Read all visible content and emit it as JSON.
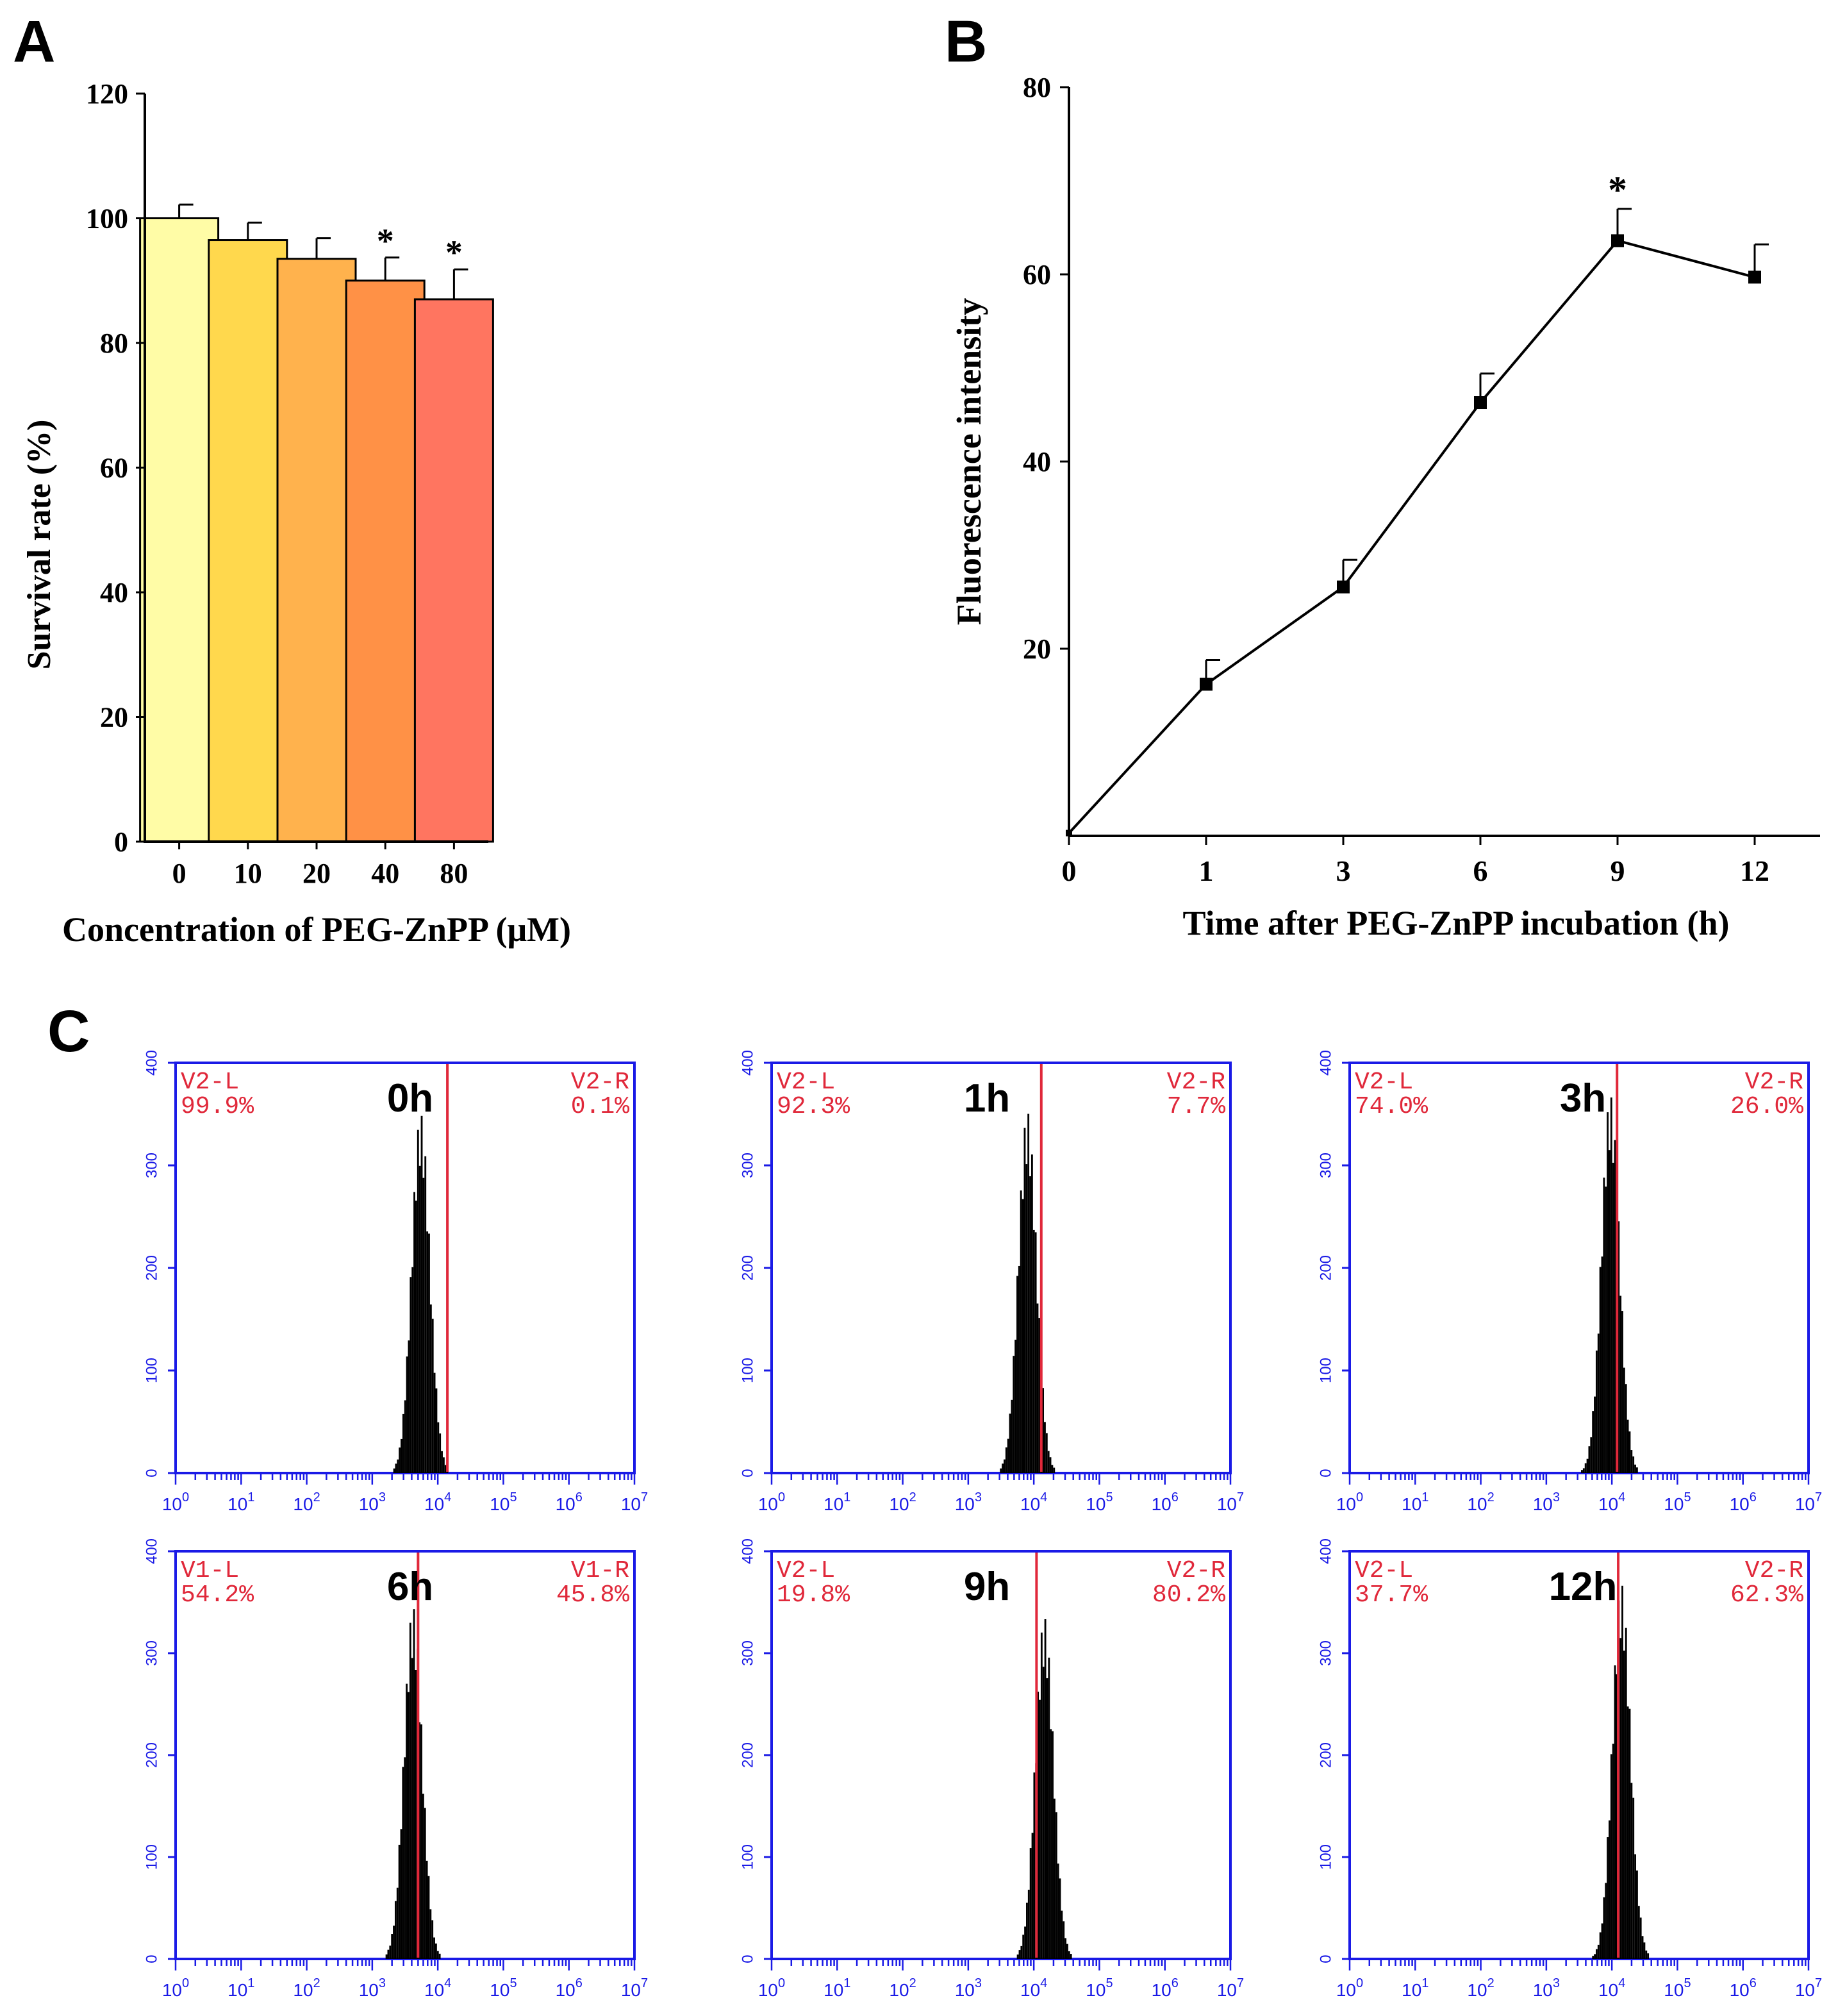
{
  "panels": {
    "a": "A",
    "b": "B",
    "c": "C"
  },
  "colors": {
    "flow_frame": "#1a1ae6",
    "gate_text": "#e0283a",
    "gate_line": "#e0283a",
    "hist_fill": "#000000"
  },
  "chart_data": [
    {
      "type": "bar",
      "panel": "A",
      "categories": [
        "0",
        "10",
        "20",
        "40",
        "80"
      ],
      "values": [
        100,
        96.5,
        93.5,
        90,
        87
      ],
      "errors": [
        2.2,
        2.8,
        3.3,
        3.7,
        4.8
      ],
      "significance": [
        "",
        "",
        "",
        "*",
        "*"
      ],
      "bar_colors": [
        "#fffca6",
        "#ffd84d",
        "#ffb24d",
        "#ff9146",
        "#ff7560"
      ],
      "xlabel": "Concentration of PEG-ZnPP (μM)",
      "ylabel": "Survival rate (%)",
      "ylim": [
        0,
        120
      ],
      "yticks": [
        "0",
        "20",
        "40",
        "60",
        "80",
        "100",
        "120"
      ]
    },
    {
      "type": "line",
      "panel": "B",
      "x": [
        0,
        1,
        3,
        6,
        9,
        12
      ],
      "x_tick_labels": [
        "0",
        "1",
        "3",
        "6",
        "9",
        "12"
      ],
      "y": [
        0.3,
        16.2,
        26.6,
        46.3,
        63.6,
        59.7
      ],
      "errors": [
        0,
        2.6,
        2.9,
        3.1,
        3.4,
        3.5
      ],
      "significance": [
        "",
        "",
        "",
        "",
        "*",
        ""
      ],
      "xlabel": "Time after PEG-ZnPP incubation (h)",
      "ylabel": "Fluorescence  intensity",
      "ylim": [
        0,
        80
      ],
      "yticks": [
        "20",
        "40",
        "60",
        "80"
      ],
      "x0_label": "0"
    },
    {
      "type": "histogram",
      "panel": "C",
      "x_scale": "log",
      "xlim": [
        1,
        10000000
      ],
      "x_tick_labels": [
        [
          "10",
          "0"
        ],
        [
          "10",
          "1"
        ],
        [
          "10",
          "2"
        ],
        [
          "10",
          "3"
        ],
        [
          "10",
          "4"
        ],
        [
          "10",
          "5"
        ],
        [
          "10",
          "6"
        ],
        [
          "10",
          "7"
        ]
      ],
      "ylim": [
        0,
        400
      ],
      "y_tick_labels": [
        "0",
        "100",
        "200",
        "300",
        "400"
      ],
      "plots": [
        {
          "time": "0h",
          "left_gate": "V2-L",
          "left_pct": "99.9%",
          "right_gate": "V2-R",
          "right_pct": "0.1%",
          "gate_x": 14000,
          "peak_x": 5500,
          "peak_count": 350
        },
        {
          "time": "1h",
          "left_gate": "V2-L",
          "left_pct": "92.3%",
          "right_gate": "V2-R",
          "right_pct": "7.7%",
          "gate_x": 13000,
          "peak_x": 8000,
          "peak_count": 352
        },
        {
          "time": "3h",
          "left_gate": "V2-L",
          "left_pct": "74.0%",
          "right_gate": "V2-R",
          "right_pct": "26.0%",
          "gate_x": 12000,
          "peak_x": 9500,
          "peak_count": 368
        },
        {
          "time": "6h",
          "left_gate": "V1-L",
          "left_pct": "54.2%",
          "right_gate": "V1-R",
          "right_pct": "45.8%",
          "gate_x": 5000,
          "peak_x": 4200,
          "peak_count": 345
        },
        {
          "time": "9h",
          "left_gate": "V2-L",
          "left_pct": "19.8%",
          "right_gate": "V2-R",
          "right_pct": "80.2%",
          "gate_x": 11000,
          "peak_x": 14500,
          "peak_count": 335
        },
        {
          "time": "12h",
          "left_gate": "V2-L",
          "left_pct": "37.7%",
          "right_gate": "V2-R",
          "right_pct": "62.3%",
          "gate_x": 12500,
          "peak_x": 14000,
          "peak_count": 368
        }
      ]
    }
  ]
}
